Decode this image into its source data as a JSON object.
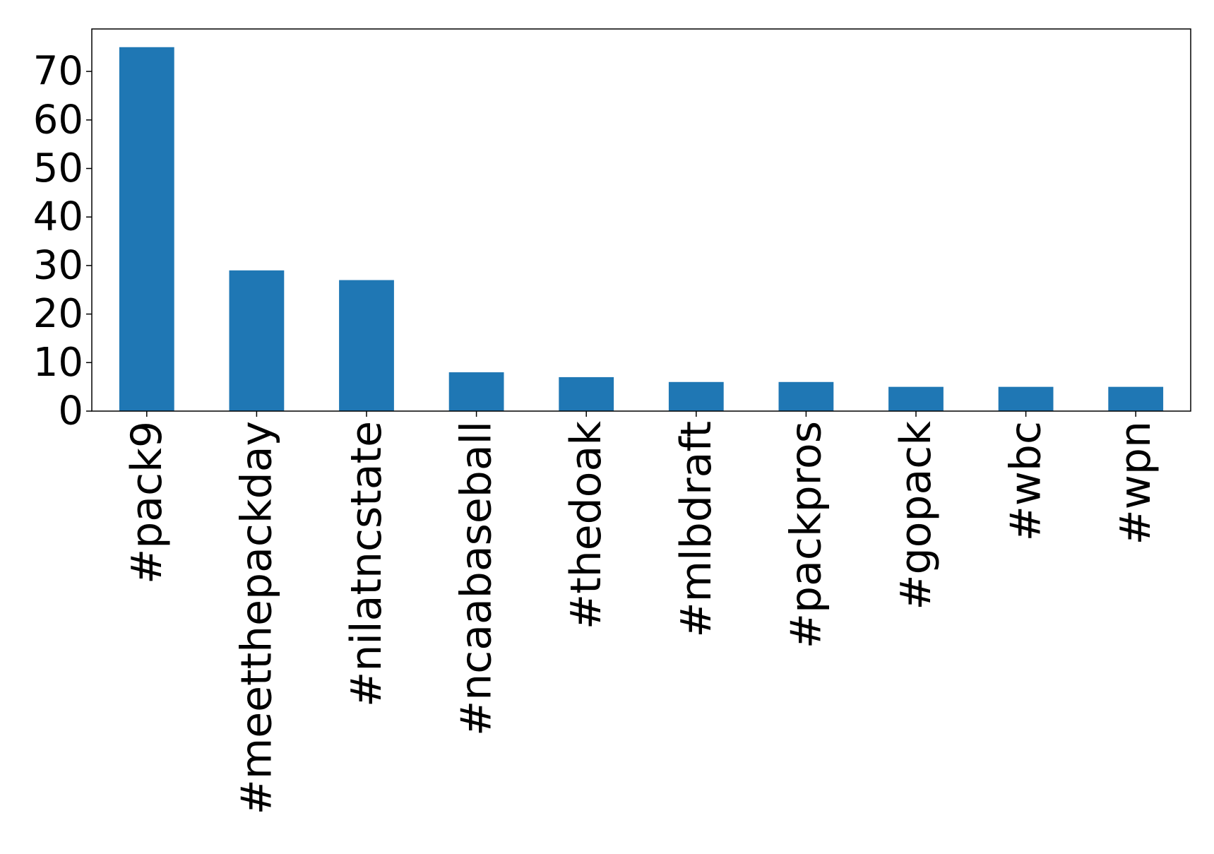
{
  "chart_data": {
    "type": "bar",
    "title": "",
    "xlabel": "",
    "ylabel": "",
    "categories": [
      "#pack9",
      "#meetthepackday",
      "#nilatncstate",
      "#ncaabaseball",
      "#thedoak",
      "#mlbdraft",
      "#packpros",
      "#gopack",
      "#wbc",
      "#wpn"
    ],
    "values": [
      75,
      29,
      27,
      8,
      7,
      6,
      6,
      5,
      5,
      5
    ],
    "ylim": [
      0,
      78.75
    ],
    "yticks": [
      0,
      10,
      20,
      30,
      40,
      50,
      60,
      70
    ],
    "bar_color": "#1f77b4",
    "grid": false,
    "legend": "none",
    "xtick_rotation": "vertical"
  }
}
